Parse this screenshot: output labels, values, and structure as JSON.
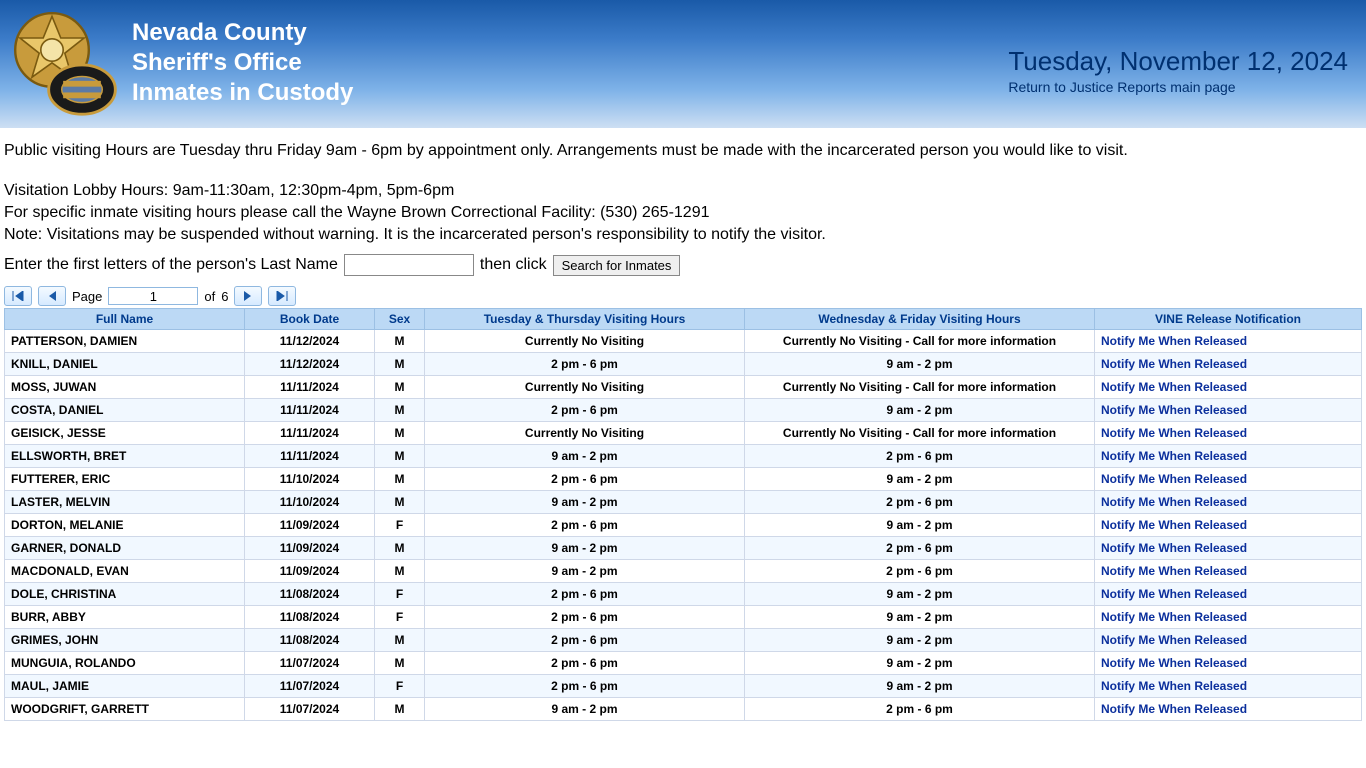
{
  "header": {
    "line1": "Nevada County",
    "line2": "Sheriff's Office",
    "line3": "Inmates in Custody",
    "date": "Tuesday, November 12, 2024",
    "return_link": "Return to Justice Reports main page"
  },
  "info": {
    "p1": "Public visiting Hours are Tuesday thru Friday 9am - 6pm by appointment only. Arrangements must be made with the incarcerated person you would like to visit.",
    "p2a": "Visitation Lobby Hours: 9am-11:30am, 12:30pm-4pm, 5pm-6pm",
    "p2b": "For specific inmate visiting hours please call the Wayne Brown Correctional Facility: (530) 265-1291",
    "p2c": "Note: Visitations may be suspended without warning. It is the incarcerated person's responsibility to notify the visitor."
  },
  "search": {
    "prompt_before": "Enter the first letters of the person's Last Name",
    "prompt_after": "then click",
    "button": "Search for Inmates",
    "value": ""
  },
  "pager": {
    "page_label": "Page",
    "page_value": "1",
    "of_label": "of",
    "total_pages": "6"
  },
  "columns": {
    "name": "Full Name",
    "date": "Book Date",
    "sex": "Sex",
    "tt": "Tuesday & Thursday Visiting Hours",
    "wf": "Wednesday & Friday Visiting Hours",
    "vine": "VINE Release Notification"
  },
  "vine_link_text": "Notify Me When Released",
  "rows": [
    {
      "name": "PATTERSON, DAMIEN",
      "date": "11/12/2024",
      "sex": "M",
      "tt": "Currently No Visiting",
      "wf": "Currently No Visiting - Call for more information"
    },
    {
      "name": "KNILL, DANIEL",
      "date": "11/12/2024",
      "sex": "M",
      "tt": "2 pm - 6 pm",
      "wf": "9 am - 2 pm"
    },
    {
      "name": "MOSS, JUWAN",
      "date": "11/11/2024",
      "sex": "M",
      "tt": "Currently No Visiting",
      "wf": "Currently No Visiting - Call for more information"
    },
    {
      "name": "COSTA, DANIEL",
      "date": "11/11/2024",
      "sex": "M",
      "tt": "2 pm - 6 pm",
      "wf": "9 am - 2 pm"
    },
    {
      "name": "GEISICK, JESSE",
      "date": "11/11/2024",
      "sex": "M",
      "tt": "Currently No Visiting",
      "wf": "Currently No Visiting - Call for more information"
    },
    {
      "name": "ELLSWORTH, BRET",
      "date": "11/11/2024",
      "sex": "M",
      "tt": "9 am - 2 pm",
      "wf": "2 pm - 6 pm"
    },
    {
      "name": "FUTTERER, ERIC",
      "date": "11/10/2024",
      "sex": "M",
      "tt": "2 pm - 6 pm",
      "wf": "9 am - 2 pm"
    },
    {
      "name": "LASTER, MELVIN",
      "date": "11/10/2024",
      "sex": "M",
      "tt": "9 am - 2 pm",
      "wf": "2 pm - 6 pm"
    },
    {
      "name": "DORTON, MELANIE",
      "date": "11/09/2024",
      "sex": "F",
      "tt": "2 pm - 6 pm",
      "wf": "9 am - 2 pm"
    },
    {
      "name": "GARNER, DONALD",
      "date": "11/09/2024",
      "sex": "M",
      "tt": "9 am - 2 pm",
      "wf": "2 pm - 6 pm"
    },
    {
      "name": "MACDONALD, EVAN",
      "date": "11/09/2024",
      "sex": "M",
      "tt": "9 am - 2 pm",
      "wf": "2 pm - 6 pm"
    },
    {
      "name": "DOLE, CHRISTINA",
      "date": "11/08/2024",
      "sex": "F",
      "tt": "2 pm - 6 pm",
      "wf": "9 am - 2 pm"
    },
    {
      "name": "BURR, ABBY",
      "date": "11/08/2024",
      "sex": "F",
      "tt": "2 pm - 6 pm",
      "wf": "9 am - 2 pm"
    },
    {
      "name": "GRIMES, JOHN",
      "date": "11/08/2024",
      "sex": "M",
      "tt": "2 pm - 6 pm",
      "wf": "9 am - 2 pm"
    },
    {
      "name": "MUNGUIA, ROLANDO",
      "date": "11/07/2024",
      "sex": "M",
      "tt": "2 pm - 6 pm",
      "wf": "9 am - 2 pm"
    },
    {
      "name": "MAUL, JAMIE",
      "date": "11/07/2024",
      "sex": "F",
      "tt": "2 pm - 6 pm",
      "wf": "9 am - 2 pm"
    },
    {
      "name": "WOODGRIFT, GARRETT",
      "date": "11/07/2024",
      "sex": "M",
      "tt": "9 am - 2 pm",
      "wf": "2 pm - 6 pm"
    }
  ],
  "colors": {
    "header_grad_top": "#1a5aa8",
    "header_grad_bottom": "#cddff3",
    "th_bg": "#bcd9f5",
    "th_text": "#003a8c",
    "row_even": "#f1f8ff",
    "link": "#0b2f9c"
  }
}
